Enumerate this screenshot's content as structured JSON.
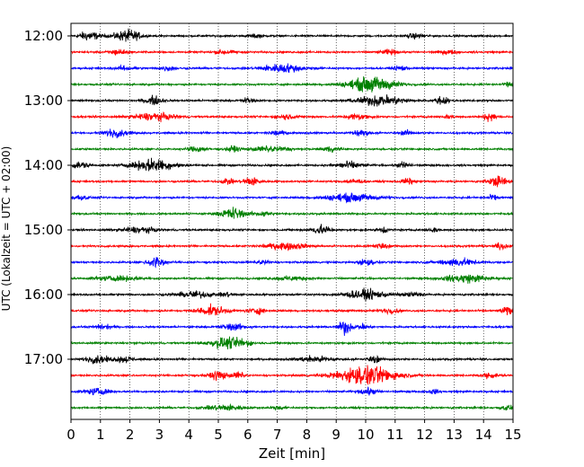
{
  "chart_data": {
    "type": "line",
    "xlabel": "Zeit  [min]",
    "ylabel": "UTC (Lokalzeit = UTC + 02:00)",
    "xlim": [
      0,
      15
    ],
    "x_ticks": [
      "0",
      "1",
      "2",
      "3",
      "4",
      "5",
      "6",
      "7",
      "8",
      "9",
      "10",
      "11",
      "12",
      "13",
      "14",
      "15"
    ],
    "y_ticks": [
      {
        "label": "12:00",
        "row": 0
      },
      {
        "label": "13:00",
        "row": 4
      },
      {
        "label": "14:00",
        "row": 8
      },
      {
        "label": "15:00",
        "row": 12
      },
      {
        "label": "16:00",
        "row": 16
      },
      {
        "label": "17:00",
        "row": 20
      }
    ],
    "grid": "vertical-dotted",
    "colors": [
      "#000000",
      "#ff0000",
      "#0000ff",
      "#008000"
    ],
    "row_interval_min": 15,
    "series": [
      {
        "row": 0,
        "start": "12:00",
        "color": "#000000",
        "amp": 0.35,
        "bursts": [
          [
            0.6,
            0.35,
            1.0
          ],
          [
            1.8,
            0.4,
            0.9
          ],
          [
            2.1,
            0.3,
            0.6
          ],
          [
            6.3,
            0.2,
            0.4
          ],
          [
            11.7,
            0.3,
            0.5
          ]
        ]
      },
      {
        "row": 1,
        "start": "12:15",
        "color": "#ff0000",
        "amp": 0.35,
        "bursts": [
          [
            1.6,
            0.3,
            0.6
          ],
          [
            5.2,
            0.3,
            0.5
          ],
          [
            10.8,
            0.3,
            0.5
          ],
          [
            12.8,
            0.3,
            0.4
          ]
        ]
      },
      {
        "row": 2,
        "start": "12:30",
        "color": "#0000ff",
        "amp": 0.35,
        "bursts": [
          [
            1.8,
            0.3,
            0.4
          ],
          [
            3.3,
            0.25,
            0.5
          ],
          [
            7.2,
            0.7,
            0.9
          ],
          [
            11.2,
            0.2,
            0.6
          ]
        ]
      },
      {
        "row": 3,
        "start": "12:45",
        "color": "#008000",
        "amp": 0.35,
        "bursts": [
          [
            10.2,
            0.8,
            1.6
          ],
          [
            14.9,
            0.2,
            0.5
          ]
        ]
      },
      {
        "row": 4,
        "start": "13:00",
        "color": "#000000",
        "amp": 0.35,
        "bursts": [
          [
            2.8,
            0.3,
            0.9
          ],
          [
            6.0,
            0.2,
            0.6
          ],
          [
            10.5,
            0.8,
            1.1
          ],
          [
            12.6,
            0.2,
            0.9
          ]
        ]
      },
      {
        "row": 5,
        "start": "13:15",
        "color": "#ff0000",
        "amp": 0.35,
        "bursts": [
          [
            2.8,
            0.7,
            0.8
          ],
          [
            7.3,
            0.3,
            0.5
          ],
          [
            9.7,
            0.4,
            0.6
          ],
          [
            12.8,
            0.2,
            0.4
          ],
          [
            14.2,
            0.2,
            0.9
          ]
        ]
      },
      {
        "row": 6,
        "start": "13:30",
        "color": "#0000ff",
        "amp": 0.35,
        "bursts": [
          [
            1.5,
            0.4,
            0.8
          ],
          [
            7.0,
            0.3,
            0.5
          ],
          [
            9.8,
            0.3,
            0.7
          ],
          [
            11.4,
            0.2,
            0.5
          ]
        ]
      },
      {
        "row": 7,
        "start": "13:45",
        "color": "#008000",
        "amp": 0.35,
        "bursts": [
          [
            4.3,
            0.3,
            0.6
          ],
          [
            5.5,
            0.2,
            0.7
          ],
          [
            6.8,
            0.6,
            0.6
          ],
          [
            8.8,
            0.3,
            0.5
          ]
        ]
      },
      {
        "row": 8,
        "start": "14:00",
        "color": "#000000",
        "amp": 0.35,
        "bursts": [
          [
            0.3,
            0.3,
            0.7
          ],
          [
            2.8,
            0.7,
            1.3
          ],
          [
            9.4,
            0.4,
            0.8
          ],
          [
            11.3,
            0.2,
            0.7
          ]
        ]
      },
      {
        "row": 9,
        "start": "14:15",
        "color": "#ff0000",
        "amp": 0.35,
        "bursts": [
          [
            5.3,
            0.2,
            0.6
          ],
          [
            6.1,
            0.3,
            0.9
          ],
          [
            9.6,
            0.3,
            0.5
          ],
          [
            11.4,
            0.2,
            0.7
          ],
          [
            14.5,
            0.3,
            1.1
          ]
        ]
      },
      {
        "row": 10,
        "start": "14:30",
        "color": "#0000ff",
        "amp": 0.35,
        "bursts": [
          [
            0.3,
            0.3,
            0.5
          ],
          [
            9.5,
            0.9,
            0.8
          ],
          [
            14.3,
            0.2,
            0.5
          ]
        ]
      },
      {
        "row": 11,
        "start": "14:45",
        "color": "#008000",
        "amp": 0.35,
        "bursts": [
          [
            5.5,
            0.4,
            1.3
          ],
          [
            6.5,
            0.3,
            0.5
          ]
        ]
      },
      {
        "row": 12,
        "start": "15:00",
        "color": "#000000",
        "amp": 0.35,
        "bursts": [
          [
            2.3,
            0.6,
            0.6
          ],
          [
            8.5,
            0.3,
            1.0
          ],
          [
            10.6,
            0.2,
            0.6
          ],
          [
            12.3,
            0.2,
            0.5
          ]
        ]
      },
      {
        "row": 13,
        "start": "15:15",
        "color": "#ff0000",
        "amp": 0.35,
        "bursts": [
          [
            7.3,
            0.7,
            0.7
          ],
          [
            10.5,
            0.3,
            0.5
          ],
          [
            14.6,
            0.2,
            0.7
          ]
        ]
      },
      {
        "row": 14,
        "start": "15:30",
        "color": "#0000ff",
        "amp": 0.35,
        "bursts": [
          [
            2.9,
            0.3,
            1.2
          ],
          [
            6.5,
            0.2,
            0.5
          ],
          [
            10.0,
            0.3,
            0.6
          ],
          [
            13.1,
            0.6,
            0.8
          ]
        ]
      },
      {
        "row": 15,
        "start": "15:45",
        "color": "#008000",
        "amp": 0.35,
        "bursts": [
          [
            1.6,
            0.7,
            0.5
          ],
          [
            7.5,
            0.6,
            0.4
          ],
          [
            13.4,
            0.7,
            0.9
          ]
        ]
      },
      {
        "row": 16,
        "start": "16:00",
        "color": "#000000",
        "amp": 0.35,
        "bursts": [
          [
            4.2,
            0.6,
            0.7
          ],
          [
            5.3,
            0.2,
            0.5
          ],
          [
            10.0,
            0.7,
            1.0
          ],
          [
            11.6,
            0.3,
            0.5
          ]
        ]
      },
      {
        "row": 17,
        "start": "16:15",
        "color": "#ff0000",
        "amp": 0.35,
        "bursts": [
          [
            4.8,
            0.5,
            1.0
          ],
          [
            6.3,
            0.3,
            0.6
          ],
          [
            10.8,
            0.3,
            0.5
          ],
          [
            14.8,
            0.2,
            0.9
          ]
        ]
      },
      {
        "row": 18,
        "start": "16:30",
        "color": "#0000ff",
        "amp": 0.35,
        "bursts": [
          [
            1.1,
            0.3,
            0.5
          ],
          [
            5.5,
            0.4,
            0.7
          ],
          [
            9.3,
            0.2,
            1.6
          ],
          [
            9.9,
            0.2,
            0.6
          ]
        ]
      },
      {
        "row": 19,
        "start": "16:45",
        "color": "#008000",
        "amp": 0.35,
        "bursts": [
          [
            5.2,
            0.5,
            1.1
          ],
          [
            5.8,
            0.3,
            0.8
          ]
        ]
      },
      {
        "row": 20,
        "start": "17:00",
        "color": "#000000",
        "amp": 0.35,
        "bursts": [
          [
            0.9,
            0.4,
            0.8
          ],
          [
            1.8,
            0.3,
            0.7
          ],
          [
            8.3,
            0.6,
            0.6
          ],
          [
            10.3,
            0.2,
            0.7
          ]
        ]
      },
      {
        "row": 21,
        "start": "17:15",
        "color": "#ff0000",
        "amp": 0.35,
        "bursts": [
          [
            5.0,
            0.3,
            1.0
          ],
          [
            5.7,
            0.2,
            0.7
          ],
          [
            10.0,
            1.0,
            2.0
          ],
          [
            14.2,
            0.3,
            0.5
          ]
        ]
      },
      {
        "row": 22,
        "start": "17:30",
        "color": "#0000ff",
        "amp": 0.35,
        "bursts": [
          [
            0.9,
            0.4,
            0.7
          ],
          [
            10.1,
            0.3,
            0.7
          ],
          [
            12.3,
            0.2,
            0.4
          ]
        ]
      },
      {
        "row": 23,
        "start": "17:45",
        "color": "#008000",
        "amp": 0.35,
        "bursts": [
          [
            5.2,
            0.6,
            0.6
          ],
          [
            7.0,
            0.2,
            0.4
          ],
          [
            14.8,
            0.2,
            0.5
          ]
        ]
      }
    ]
  }
}
